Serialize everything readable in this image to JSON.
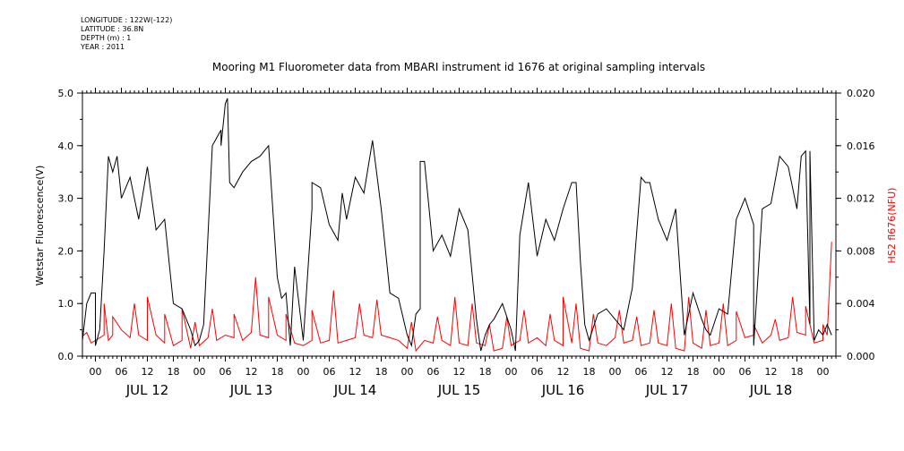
{
  "metadata": {
    "longitude": "LONGITUDE : 122W(-122)",
    "latitude": "LATITUDE : 36.8N",
    "depth": "DEPTH (m) : 1",
    "year": "YEAR : 2011"
  },
  "chart_data": {
    "type": "line",
    "title": "Mooring M1 Fluorometer data from MBARI instrument id 1676 at original sampling intervals",
    "ylabel_left": "Wetstar Fluorescence(V)",
    "ylabel_right": "HS2 fl676(NFU)",
    "ylim_left": [
      0,
      5
    ],
    "ylim_right": [
      0,
      0.02
    ],
    "yticks_left": [
      "0.0",
      "1.0",
      "2.0",
      "3.0",
      "4.0",
      "5.0"
    ],
    "yticks_right": [
      "0.000",
      "0.004",
      "0.008",
      "0.012",
      "0.016",
      "0.020"
    ],
    "xlim_hours": [
      -3,
      171
    ],
    "hour_ticks": [
      "00",
      "06",
      "12",
      "18"
    ],
    "day_labels": [
      "JUL 12",
      "JUL 13",
      "JUL 14",
      "JUL 15",
      "JUL 16",
      "JUL 17",
      "JUL 18"
    ],
    "series": [
      {
        "name": "Wetstar Fluorescence(V)",
        "axis": "left",
        "color": "#000000",
        "x": [
          -3,
          -2,
          -1,
          0,
          1,
          2,
          3,
          4,
          6,
          8,
          10,
          12,
          14,
          16,
          18,
          20,
          22,
          23,
          24,
          25,
          27,
          29,
          30,
          31,
          32,
          34,
          36,
          38,
          40,
          42,
          43,
          44,
          46,
          48,
          50,
          52,
          54,
          56,
          57,
          58,
          60,
          62,
          64,
          66,
          68,
          70,
          72,
          74,
          75,
          76,
          78,
          80,
          82,
          84,
          86,
          88,
          90,
          91,
          92,
          94,
          96,
          98,
          100,
          102,
          104,
          106,
          108,
          110,
          112,
          113,
          114,
          116,
          118,
          120,
          122,
          124,
          126,
          128,
          130,
          132,
          134,
          136,
          138,
          140,
          141,
          142,
          144,
          146,
          148,
          150,
          152,
          154,
          156,
          158,
          160,
          162,
          164,
          165,
          166,
          167,
          168,
          169,
          170
        ],
        "y": [
          0.3,
          1.0,
          1.2,
          1.2,
          0.5,
          2.0,
          3.8,
          3.5,
          3.0,
          3.4,
          2.6,
          3.6,
          2.4,
          2.6,
          1.0,
          0.9,
          0.5,
          0.2,
          0.3,
          0.6,
          4.0,
          4.3,
          4.8,
          3.3,
          3.2,
          3.5,
          3.7,
          3.8,
          4.0,
          1.5,
          1.1,
          1.2,
          1.7,
          0.3,
          2.8,
          3.2,
          2.5,
          2.2,
          3.1,
          2.6,
          3.4,
          3.1,
          4.1,
          2.8,
          1.2,
          1.1,
          0.4,
          0.8,
          0.9,
          3.7,
          2.0,
          2.3,
          1.9,
          2.8,
          2.4,
          0.7,
          0.4,
          0.6,
          0.7,
          1.0,
          0.5,
          2.3,
          3.3,
          1.9,
          2.6,
          2.2,
          2.8,
          3.3,
          1.8,
          0.6,
          0.3,
          0.8,
          0.9,
          0.7,
          0.5,
          1.3,
          3.4,
          3.3,
          2.6,
          2.2,
          2.8,
          0.4,
          1.2,
          0.7,
          0.5,
          0.4,
          0.9,
          0.8,
          2.6,
          3.0,
          2.5,
          2.8,
          2.9,
          3.8,
          3.6,
          2.8,
          3.9,
          0.6,
          0.3,
          0.5,
          0.4,
          0.6,
          0.4
        ]
      },
      {
        "name": "HS2 fl676(NFU)",
        "axis": "right",
        "color": "#ff0000",
        "x": [
          -3,
          -2,
          -1,
          0,
          1,
          2,
          3,
          4,
          6,
          8,
          10,
          12,
          14,
          16,
          18,
          20,
          22,
          24,
          26,
          28,
          30,
          32,
          34,
          36,
          38,
          40,
          42,
          44,
          46,
          48,
          50,
          52,
          54,
          56,
          58,
          60,
          62,
          64,
          66,
          68,
          70,
          72,
          74,
          76,
          78,
          80,
          82,
          84,
          86,
          88,
          90,
          92,
          94,
          96,
          98,
          100,
          102,
          104,
          106,
          108,
          110,
          112,
          114,
          116,
          118,
          120,
          122,
          124,
          126,
          128,
          130,
          132,
          134,
          136,
          138,
          140,
          142,
          144,
          146,
          148,
          150,
          152,
          154,
          156,
          158,
          160,
          162,
          164,
          166,
          168,
          169,
          170
        ],
        "y": [
          0.0015,
          0.0018,
          0.001,
          0.0012,
          0.0014,
          0.0016,
          0.0012,
          0.0016,
          0.002,
          0.0014,
          0.0016,
          0.0012,
          0.0016,
          0.001,
          0.0008,
          0.0012,
          0.0006,
          0.0008,
          0.0014,
          0.0012,
          0.0016,
          0.0014,
          0.0012,
          0.0018,
          0.0016,
          0.0014,
          0.0016,
          0.0012,
          0.001,
          0.0008,
          0.0012,
          0.001,
          0.0012,
          0.001,
          0.0012,
          0.0014,
          0.0016,
          0.0014,
          0.0016,
          0.0014,
          0.0012,
          0.0006,
          0.0004,
          0.0012,
          0.001,
          0.0012,
          0.0008,
          0.001,
          0.0008,
          0.001,
          0.0008,
          0.0004,
          0.0006,
          0.0008,
          0.0012,
          0.001,
          0.0014,
          0.0008,
          0.0012,
          0.0008,
          0.001,
          0.0006,
          0.0004,
          0.001,
          0.0008,
          0.0014,
          0.001,
          0.0012,
          0.0008,
          0.001,
          0.001,
          0.0008,
          0.0006,
          0.0004,
          0.001,
          0.0006,
          0.0008,
          0.001,
          0.0008,
          0.0012,
          0.0014,
          0.0016,
          0.001,
          0.0016,
          0.0012,
          0.0014,
          0.0018,
          0.0016,
          0.001,
          0.0012,
          0.0016,
          0.0087
        ]
      }
    ],
    "spikes": {
      "left_series": [
        [
          0,
          0.2
        ],
        [
          2,
          2.0
        ],
        [
          5,
          3.8
        ],
        [
          23,
          0.2
        ],
        [
          29,
          4.0
        ],
        [
          30.5,
          4.9
        ],
        [
          45,
          0.2
        ],
        [
          50,
          3.3
        ],
        [
          73,
          0.2
        ],
        [
          75,
          3.7
        ],
        [
          89,
          0.1
        ],
        [
          97,
          0.1
        ],
        [
          111,
          3.3
        ],
        [
          127,
          3.3
        ],
        [
          152,
          0.2
        ],
        [
          163,
          3.8
        ],
        [
          165,
          3.9
        ]
      ],
      "right_series": [
        [
          2,
          0.004
        ],
        [
          4,
          0.003
        ],
        [
          9,
          0.004
        ],
        [
          12,
          0.0045
        ],
        [
          16,
          0.0032
        ],
        [
          20,
          0.0036
        ],
        [
          23,
          0.0026
        ],
        [
          27,
          0.0036
        ],
        [
          32,
          0.0032
        ],
        [
          37,
          0.006
        ],
        [
          40,
          0.0045
        ],
        [
          44,
          0.0032
        ],
        [
          50,
          0.0035
        ],
        [
          55,
          0.005
        ],
        [
          61,
          0.004
        ],
        [
          65,
          0.0043
        ],
        [
          73,
          0.0026
        ],
        [
          79,
          0.003
        ],
        [
          83,
          0.0045
        ],
        [
          87,
          0.004
        ],
        [
          91,
          0.0024
        ],
        [
          95,
          0.003
        ],
        [
          99,
          0.0035
        ],
        [
          105,
          0.0032
        ],
        [
          108,
          0.0045
        ],
        [
          111,
          0.004
        ],
        [
          115,
          0.0032
        ],
        [
          121,
          0.0035
        ],
        [
          125,
          0.003
        ],
        [
          129,
          0.0035
        ],
        [
          133,
          0.004
        ],
        [
          137,
          0.0045
        ],
        [
          141,
          0.0035
        ],
        [
          145,
          0.004
        ],
        [
          148,
          0.0034
        ],
        [
          152,
          0.0024
        ],
        [
          157,
          0.0028
        ],
        [
          161,
          0.0045
        ],
        [
          164,
          0.0038
        ],
        [
          168,
          0.0024
        ],
        [
          170,
          0.0087
        ]
      ]
    }
  }
}
